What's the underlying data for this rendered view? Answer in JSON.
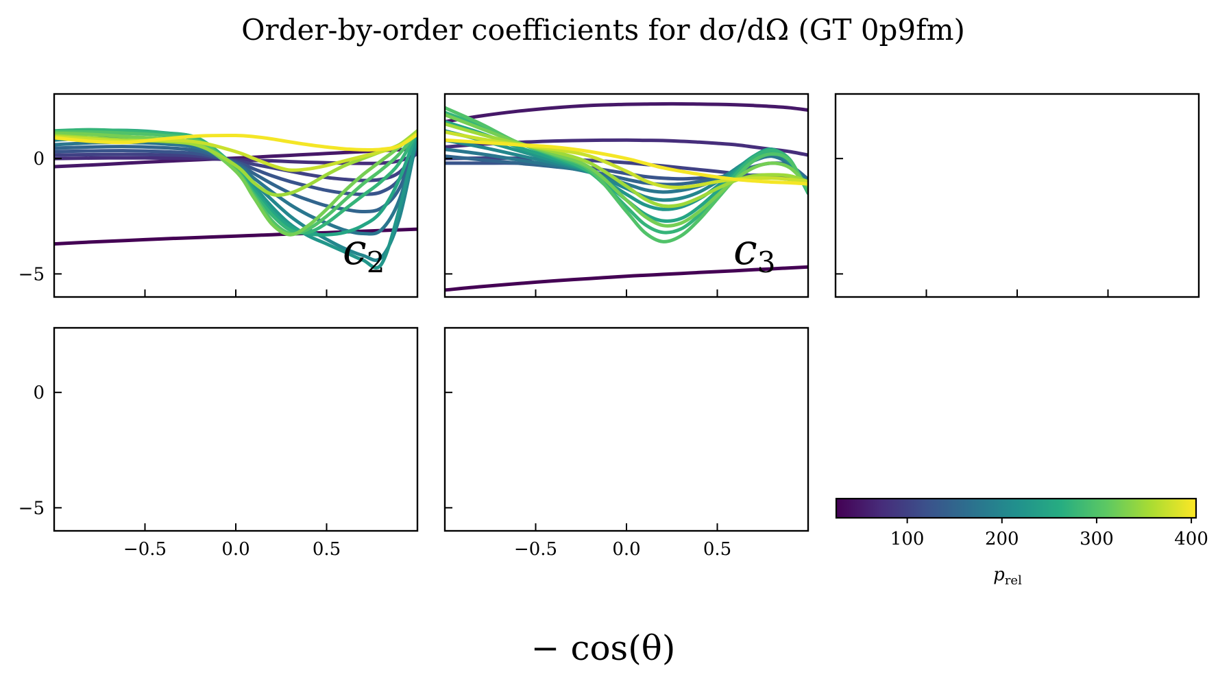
{
  "figure": {
    "title": "Order-by-order coefficients for dσ/dΩ (GT 0p9fm)",
    "xlabel": "− cos(θ)"
  },
  "chart_data": {
    "type": "line",
    "shared_x_range": [
      -1.0,
      1.0
    ],
    "shared_y_range": [
      -6.0,
      2.8
    ],
    "x_ticks": [
      -0.5,
      0.0,
      0.5
    ],
    "x_tick_labels": [
      "−0.5",
      "0.0",
      "0.5"
    ],
    "y_ticks": [
      0,
      -5
    ],
    "y_tick_labels": [
      "0",
      "−5"
    ],
    "colormap": [
      "#440154",
      "#472c7a",
      "#3b518b",
      "#2c718e",
      "#21908d",
      "#27ad81",
      "#5cc863",
      "#aadc32",
      "#fde725"
    ],
    "colorbar": {
      "label": "p",
      "label_sub": "rel",
      "range": [
        25,
        405
      ],
      "ticks": [
        100,
        200,
        300,
        400
      ],
      "tick_labels": [
        "100",
        "200",
        "300",
        "400"
      ]
    },
    "x": [
      -1.0,
      -0.8,
      -0.6,
      -0.4,
      -0.2,
      0.0,
      0.1,
      0.2,
      0.3,
      0.4,
      0.5,
      0.6,
      0.7,
      0.8,
      0.9,
      1.0
    ],
    "panels": [
      {
        "label": "c",
        "label_sub": "2",
        "series": [
          {
            "p_rel": 25,
            "values": [
              -3.7,
              -3.62,
              -3.55,
              -3.48,
              -3.42,
              -3.36,
              -3.33,
              -3.3,
              -3.27,
              -3.24,
              -3.21,
              -3.18,
              -3.15,
              -3.12,
              -3.09,
              -3.06
            ]
          },
          {
            "p_rel": 50,
            "values": [
              -0.35,
              -0.28,
              -0.2,
              -0.12,
              -0.05,
              0.02,
              0.06,
              0.1,
              0.14,
              0.18,
              0.22,
              0.26,
              0.3,
              0.34,
              0.38,
              0.42
            ]
          },
          {
            "p_rel": 75,
            "values": [
              0.0,
              0.02,
              0.03,
              0.02,
              0.0,
              -0.05,
              -0.08,
              -0.1,
              -0.13,
              -0.16,
              -0.18,
              -0.2,
              -0.21,
              -0.2,
              -0.1,
              0.2
            ]
          },
          {
            "p_rel": 100,
            "values": [
              0.15,
              0.17,
              0.18,
              0.16,
              0.1,
              -0.1,
              -0.25,
              -0.4,
              -0.55,
              -0.7,
              -0.82,
              -0.9,
              -0.95,
              -0.9,
              -0.6,
              0.3
            ]
          },
          {
            "p_rel": 125,
            "values": [
              0.3,
              0.33,
              0.34,
              0.3,
              0.2,
              -0.15,
              -0.45,
              -0.75,
              -1.0,
              -1.2,
              -1.38,
              -1.5,
              -1.55,
              -1.45,
              -0.9,
              0.5
            ]
          },
          {
            "p_rel": 150,
            "values": [
              0.45,
              0.5,
              0.52,
              0.47,
              0.32,
              -0.2,
              -0.65,
              -1.1,
              -1.5,
              -1.8,
              -2.05,
              -2.2,
              -2.3,
              -2.15,
              -1.3,
              0.7
            ]
          },
          {
            "p_rel": 175,
            "values": [
              0.6,
              0.68,
              0.7,
              0.64,
              0.45,
              -0.25,
              -0.85,
              -1.45,
              -2.0,
              -2.45,
              -2.8,
              -3.1,
              -3.25,
              -3.1,
              -1.8,
              0.9
            ]
          },
          {
            "p_rel": 200,
            "values": [
              0.8,
              0.88,
              0.9,
              0.83,
              0.6,
              -0.3,
              -1.05,
              -1.8,
              -2.5,
              -3.05,
              -3.5,
              -3.9,
              -4.2,
              -4.3,
              -2.6,
              1.0
            ]
          },
          {
            "p_rel": 225,
            "values": [
              1.0,
              1.08,
              1.1,
              1.02,
              0.76,
              -0.35,
              -1.2,
              -2.1,
              -2.85,
              -3.35,
              -3.7,
              -4.05,
              -4.4,
              -4.6,
              -2.2,
              1.1
            ]
          },
          {
            "p_rel": 250,
            "values": [
              1.1,
              1.2,
              1.22,
              1.12,
              0.85,
              -0.4,
              -1.35,
              -2.3,
              -2.95,
              -3.25,
              -3.3,
              -3.2,
              -2.9,
              -2.3,
              -0.9,
              1.2
            ]
          },
          {
            "p_rel": 275,
            "values": [
              1.2,
              1.25,
              1.2,
              1.1,
              0.85,
              -0.45,
              -1.5,
              -2.45,
              -3.1,
              -3.2,
              -2.8,
              -2.2,
              -1.6,
              -1.0,
              -0.2,
              1.2
            ]
          },
          {
            "p_rel": 300,
            "values": [
              1.15,
              1.15,
              1.1,
              1.0,
              0.75,
              -0.5,
              -1.6,
              -2.7,
              -3.25,
              -3.05,
              -2.5,
              -1.8,
              -1.1,
              -0.5,
              0.2,
              1.2
            ]
          },
          {
            "p_rel": 325,
            "values": [
              1.1,
              1.05,
              0.95,
              0.85,
              0.6,
              -0.55,
              -1.7,
              -2.85,
              -3.3,
              -2.9,
              -2.2,
              -1.4,
              -0.7,
              -0.1,
              0.5,
              1.2
            ]
          },
          {
            "p_rel": 350,
            "values": [
              1.0,
              0.9,
              0.8,
              0.75,
              0.55,
              -0.3,
              -1.05,
              -1.55,
              -1.5,
              -1.15,
              -0.7,
              -0.3,
              0.0,
              0.3,
              0.6,
              1.2
            ]
          },
          {
            "p_rel": 375,
            "values": [
              0.95,
              0.85,
              0.75,
              0.8,
              0.7,
              0.3,
              0.0,
              -0.3,
              -0.5,
              -0.45,
              -0.3,
              -0.1,
              0.1,
              0.3,
              0.55,
              1.1
            ]
          },
          {
            "p_rel": 400,
            "values": [
              0.9,
              0.75,
              0.7,
              0.85,
              0.98,
              1.0,
              0.95,
              0.85,
              0.72,
              0.6,
              0.5,
              0.42,
              0.38,
              0.4,
              0.55,
              1.05
            ]
          }
        ]
      },
      {
        "label": "c",
        "label_sub": "3",
        "series": [
          {
            "p_rel": 25,
            "values": [
              -5.7,
              -5.55,
              -5.42,
              -5.3,
              -5.2,
              -5.1,
              -5.06,
              -5.02,
              -4.98,
              -4.94,
              -4.9,
              -4.86,
              -4.82,
              -4.78,
              -4.74,
              -4.7
            ]
          },
          {
            "p_rel": 50,
            "values": [
              1.6,
              1.85,
              2.05,
              2.2,
              2.3,
              2.35,
              2.36,
              2.37,
              2.37,
              2.36,
              2.35,
              2.33,
              2.3,
              2.26,
              2.2,
              2.1
            ]
          },
          {
            "p_rel": 75,
            "values": [
              0.5,
              0.62,
              0.7,
              0.76,
              0.79,
              0.8,
              0.79,
              0.78,
              0.75,
              0.71,
              0.66,
              0.6,
              0.5,
              0.4,
              0.3,
              0.15
            ]
          },
          {
            "p_rel": 100,
            "values": [
              0.0,
              0.02,
              0.01,
              -0.02,
              -0.08,
              -0.18,
              -0.25,
              -0.32,
              -0.4,
              -0.48,
              -0.56,
              -0.65,
              -0.74,
              -0.82,
              -0.9,
              -0.98
            ]
          },
          {
            "p_rel": 125,
            "values": [
              -0.2,
              -0.2,
              -0.2,
              -0.25,
              -0.4,
              -0.65,
              -0.78,
              -0.85,
              -0.88,
              -0.85,
              -0.8,
              -0.75,
              -0.72,
              -0.72,
              -0.78,
              -0.9
            ]
          },
          {
            "p_rel": 150,
            "values": [
              0.1,
              -0.05,
              -0.2,
              -0.35,
              -0.55,
              -0.9,
              -1.05,
              -1.12,
              -1.1,
              -1.0,
              -0.85,
              -0.6,
              -0.35,
              -0.2,
              -0.3,
              -0.9
            ]
          },
          {
            "p_rel": 175,
            "values": [
              0.4,
              0.2,
              -0.05,
              -0.3,
              -0.6,
              -1.1,
              -1.35,
              -1.45,
              -1.38,
              -1.2,
              -0.9,
              -0.5,
              -0.1,
              0.1,
              -0.25,
              -1.0
            ]
          },
          {
            "p_rel": 200,
            "values": [
              0.8,
              0.5,
              0.15,
              -0.2,
              -0.6,
              -1.3,
              -1.65,
              -1.8,
              -1.72,
              -1.45,
              -1.0,
              -0.45,
              0.05,
              0.3,
              -0.2,
              -1.2
            ]
          },
          {
            "p_rel": 225,
            "values": [
              1.2,
              0.8,
              0.35,
              -0.1,
              -0.6,
              -1.55,
              -2.0,
              -2.2,
              -2.1,
              -1.75,
              -1.2,
              -0.5,
              0.1,
              0.4,
              -0.15,
              -1.4
            ]
          },
          {
            "p_rel": 250,
            "values": [
              1.6,
              1.1,
              0.5,
              0.0,
              -0.6,
              -1.8,
              -2.4,
              -2.7,
              -2.6,
              -2.1,
              -1.4,
              -0.6,
              0.1,
              0.4,
              -0.1,
              -1.5
            ]
          },
          {
            "p_rel": 275,
            "values": [
              2.0,
              1.4,
              0.7,
              0.1,
              -0.6,
              -2.1,
              -2.85,
              -3.2,
              -3.05,
              -2.45,
              -1.6,
              -0.7,
              0.05,
              0.35,
              -0.05,
              -1.5
            ]
          },
          {
            "p_rel": 300,
            "values": [
              2.2,
              1.5,
              0.7,
              0.15,
              -0.5,
              -2.3,
              -3.2,
              -3.6,
              -3.35,
              -2.65,
              -1.75,
              -0.85,
              -0.1,
              0.2,
              -0.1,
              -1.4
            ]
          },
          {
            "p_rel": 325,
            "values": [
              1.9,
              1.3,
              0.7,
              0.2,
              -0.4,
              -1.8,
              -2.5,
              -2.9,
              -2.8,
              -2.3,
              -1.6,
              -0.9,
              -0.4,
              -0.2,
              -0.4,
              -1.2
            ]
          },
          {
            "p_rel": 350,
            "values": [
              1.5,
              1.05,
              0.65,
              0.3,
              -0.2,
              -1.2,
              -1.75,
              -2.05,
              -2.0,
              -1.7,
              -1.3,
              -0.95,
              -0.75,
              -0.7,
              -0.75,
              -1.0
            ]
          },
          {
            "p_rel": 375,
            "values": [
              1.15,
              0.85,
              0.6,
              0.4,
              0.1,
              -0.55,
              -0.95,
              -1.2,
              -1.25,
              -1.15,
              -1.0,
              -0.9,
              -0.85,
              -0.85,
              -0.9,
              -1.0
            ]
          },
          {
            "p_rel": 400,
            "values": [
              0.8,
              0.7,
              0.6,
              0.5,
              0.3,
              0.0,
              -0.2,
              -0.4,
              -0.55,
              -0.68,
              -0.8,
              -0.9,
              -0.97,
              -1.02,
              -1.05,
              -1.1
            ]
          }
        ]
      },
      {
        "label": "",
        "label_sub": "",
        "series": []
      },
      {
        "label": "",
        "label_sub": "",
        "series": []
      },
      {
        "label": "",
        "label_sub": "",
        "series": []
      }
    ]
  }
}
